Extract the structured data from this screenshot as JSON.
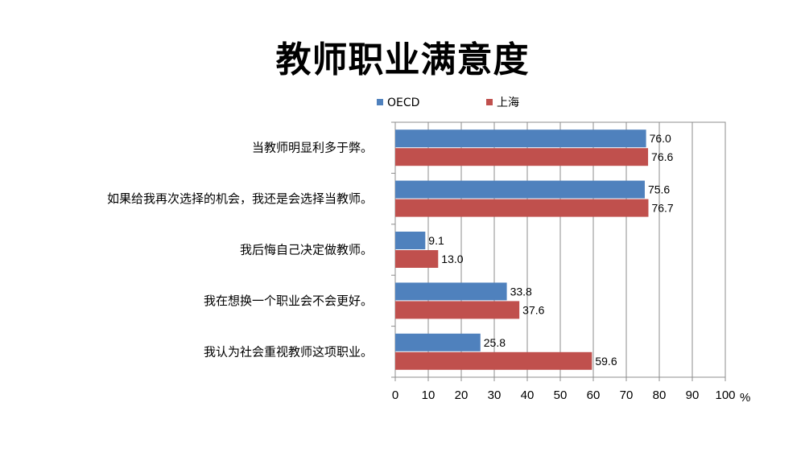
{
  "chart_data": {
    "type": "bar",
    "orientation": "horizontal",
    "title": "教师职业满意度",
    "unit_label": "%",
    "categories": [
      "当教师明显利多于弊。",
      "如果给我再次选择的机会，我还是会选择当教师。",
      "我后悔自己决定做教师。",
      "我在想换一个职业会不会更好。",
      "我认为社会重视教师这项职业。"
    ],
    "series": [
      {
        "name": "OECD",
        "color": "#4f81bd",
        "values": [
          76.0,
          75.6,
          9.1,
          33.8,
          25.8
        ]
      },
      {
        "name": "上海",
        "color": "#c0504d",
        "values": [
          76.6,
          76.7,
          13.0,
          37.6,
          59.6
        ]
      }
    ],
    "xlim": [
      0,
      100
    ],
    "xticks": [
      0,
      10,
      20,
      30,
      40,
      50,
      60,
      70,
      80,
      90,
      100
    ],
    "grid": true,
    "legend_position": "top"
  }
}
